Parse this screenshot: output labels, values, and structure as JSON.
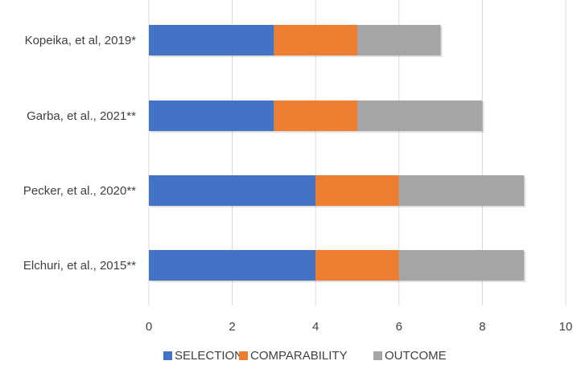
{
  "chart_data": {
    "type": "bar",
    "orientation": "horizontal",
    "stacked": true,
    "categories": [
      "Kopeika, et al, 2019*",
      "Garba, et al., 2021**",
      "Pecker, et al., 2020**",
      "Elchuri, et al., 2015**"
    ],
    "series": [
      {
        "name": "SELECTION",
        "values": [
          3,
          3,
          4,
          4
        ],
        "color": "#4472C4"
      },
      {
        "name": "COMPARABILITY",
        "values": [
          2,
          2,
          2,
          2
        ],
        "color": "#ED7D31"
      },
      {
        "name": "OUTCOME",
        "values": [
          2,
          3,
          3,
          3
        ],
        "color": "#A5A5A5"
      }
    ],
    "xlim": [
      0,
      10
    ],
    "xticks": [
      "0",
      "2",
      "4",
      "6",
      "8",
      "10"
    ],
    "grid": true,
    "legend_position": "bottom"
  }
}
